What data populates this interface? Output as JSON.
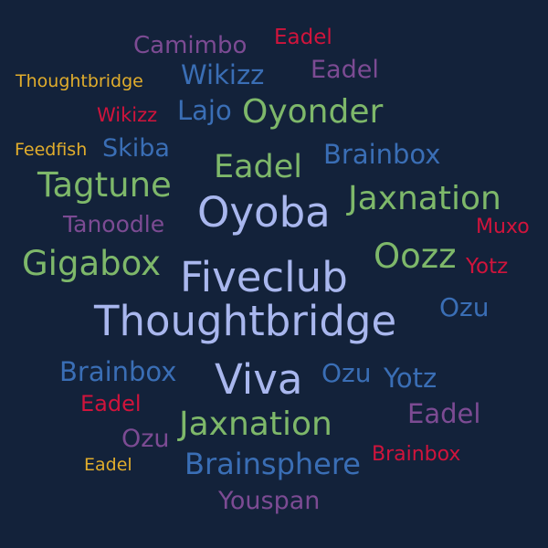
{
  "palette": {
    "background": "#13223a",
    "lavender": "#a9b7ee",
    "green": "#7eb86a",
    "blue": "#3a6eb5",
    "purple": "#7c4b93",
    "red": "#d0143c",
    "yellow": "#e1ad2c"
  },
  "words": [
    {
      "text": "Camimbo",
      "color": "purple"
    },
    {
      "text": "Eadel",
      "color": "red"
    },
    {
      "text": "Wikizz",
      "color": "blue"
    },
    {
      "text": "Eadel",
      "color": "purple"
    },
    {
      "text": "Thoughtbridge",
      "color": "yellow"
    },
    {
      "text": "Wikizz",
      "color": "red"
    },
    {
      "text": "Lajo",
      "color": "blue"
    },
    {
      "text": "Oyonder",
      "color": "green"
    },
    {
      "text": "Feedfish",
      "color": "yellow"
    },
    {
      "text": "Skiba",
      "color": "blue"
    },
    {
      "text": "Brainbox",
      "color": "blue"
    },
    {
      "text": "Eadel",
      "color": "green"
    },
    {
      "text": "Tagtune",
      "color": "green"
    },
    {
      "text": "Jaxnation",
      "color": "green"
    },
    {
      "text": "Oyoba",
      "color": "lavender"
    },
    {
      "text": "Tanoodle",
      "color": "purple"
    },
    {
      "text": "Muxo",
      "color": "red"
    },
    {
      "text": "Oozz",
      "color": "green"
    },
    {
      "text": "Gigabox",
      "color": "green"
    },
    {
      "text": "Yotz",
      "color": "red"
    },
    {
      "text": "Fiveclub",
      "color": "lavender"
    },
    {
      "text": "Ozu",
      "color": "blue"
    },
    {
      "text": "Thoughtbridge",
      "color": "lavender"
    },
    {
      "text": "Brainbox",
      "color": "blue"
    },
    {
      "text": "Viva",
      "color": "lavender"
    },
    {
      "text": "Ozu",
      "color": "blue"
    },
    {
      "text": "Yotz",
      "color": "blue"
    },
    {
      "text": "Eadel",
      "color": "red"
    },
    {
      "text": "Eadel",
      "color": "purple"
    },
    {
      "text": "Jaxnation",
      "color": "green"
    },
    {
      "text": "Ozu",
      "color": "purple"
    },
    {
      "text": "Brainbox",
      "color": "red"
    },
    {
      "text": "Eadel",
      "color": "yellow"
    },
    {
      "text": "Brainsphere",
      "color": "blue"
    },
    {
      "text": "Youspan",
      "color": "purple"
    }
  ]
}
